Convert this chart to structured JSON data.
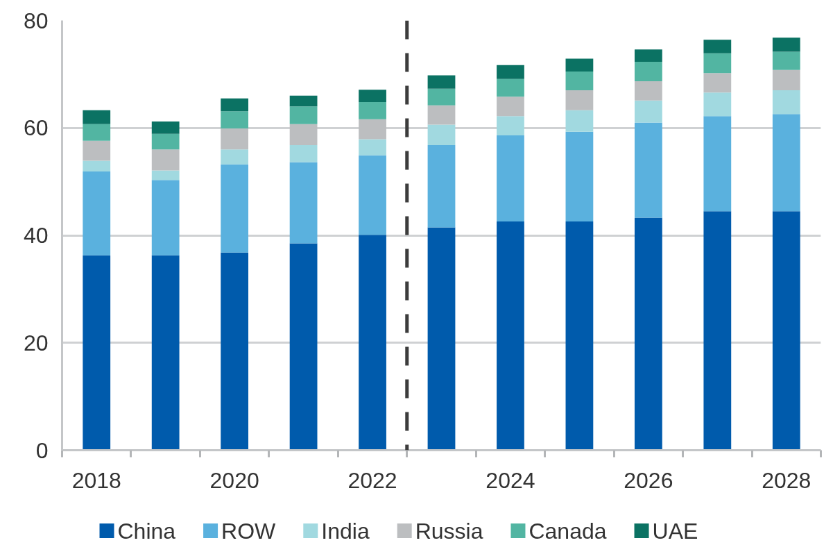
{
  "chart_data": {
    "type": "bar",
    "stacked": true,
    "x": [
      2018,
      2019,
      2020,
      2021,
      2022,
      2023,
      2024,
      2025,
      2026,
      2027,
      2028
    ],
    "xlim": [
      2017.5,
      2028.5
    ],
    "xticks": [
      {
        "value": 2017.5,
        "label": null
      },
      2018,
      {
        "value": 2018.5,
        "label": null
      },
      {
        "value": 2019.5,
        "label": null
      },
      2020,
      {
        "value": 2020.5,
        "label": null
      },
      {
        "value": 2021.5,
        "label": null
      },
      2022,
      {
        "value": 2022.5,
        "label": null
      },
      {
        "value": 2023.5,
        "label": null
      },
      2024,
      {
        "value": 2024.5,
        "label": null
      },
      {
        "value": 2025.5,
        "label": null
      },
      2026,
      {
        "value": 2026.5,
        "label": null
      },
      {
        "value": 2027.5,
        "label": null
      },
      2028,
      {
        "value": 2028.5,
        "label": null
      }
    ],
    "ylim": [
      0,
      80
    ],
    "yticks": [
      0,
      20,
      40,
      60,
      80
    ],
    "grid": "y",
    "legend": "bottom",
    "series": [
      {
        "name": "China",
        "color": "#005bac",
        "values": [
          36.3,
          36.3,
          36.8,
          38.5,
          40.1,
          41.5,
          42.6,
          42.6,
          43.3,
          44.5,
          44.5
        ]
      },
      {
        "name": "ROW",
        "color": "#5ab1de",
        "values": [
          15.6,
          14.0,
          16.4,
          15.1,
          14.8,
          15.3,
          16.0,
          16.7,
          17.7,
          17.7,
          18.1
        ]
      },
      {
        "name": "India",
        "color": "#a1d9e0",
        "values": [
          2.0,
          1.8,
          2.8,
          3.2,
          3.0,
          3.8,
          3.6,
          4.0,
          4.1,
          4.4,
          4.4
        ]
      },
      {
        "name": "Russia",
        "color": "#bcbec0",
        "values": [
          3.7,
          3.9,
          3.9,
          3.9,
          3.7,
          3.6,
          3.6,
          3.7,
          3.6,
          3.6,
          3.8
        ]
      },
      {
        "name": "Canada",
        "color": "#52b5a2",
        "values": [
          3.1,
          2.9,
          3.2,
          3.3,
          3.2,
          3.1,
          3.3,
          3.5,
          3.6,
          3.7,
          3.4
        ]
      },
      {
        "name": "UAE",
        "color": "#0b7263",
        "values": [
          2.6,
          2.3,
          2.4,
          2.0,
          2.3,
          2.5,
          2.6,
          2.4,
          2.3,
          2.5,
          2.6
        ]
      }
    ],
    "ref_lines": [
      {
        "axis": "x",
        "value": 2022.5,
        "color": "#3c3c3c",
        "line_style": "dashed"
      }
    ]
  }
}
